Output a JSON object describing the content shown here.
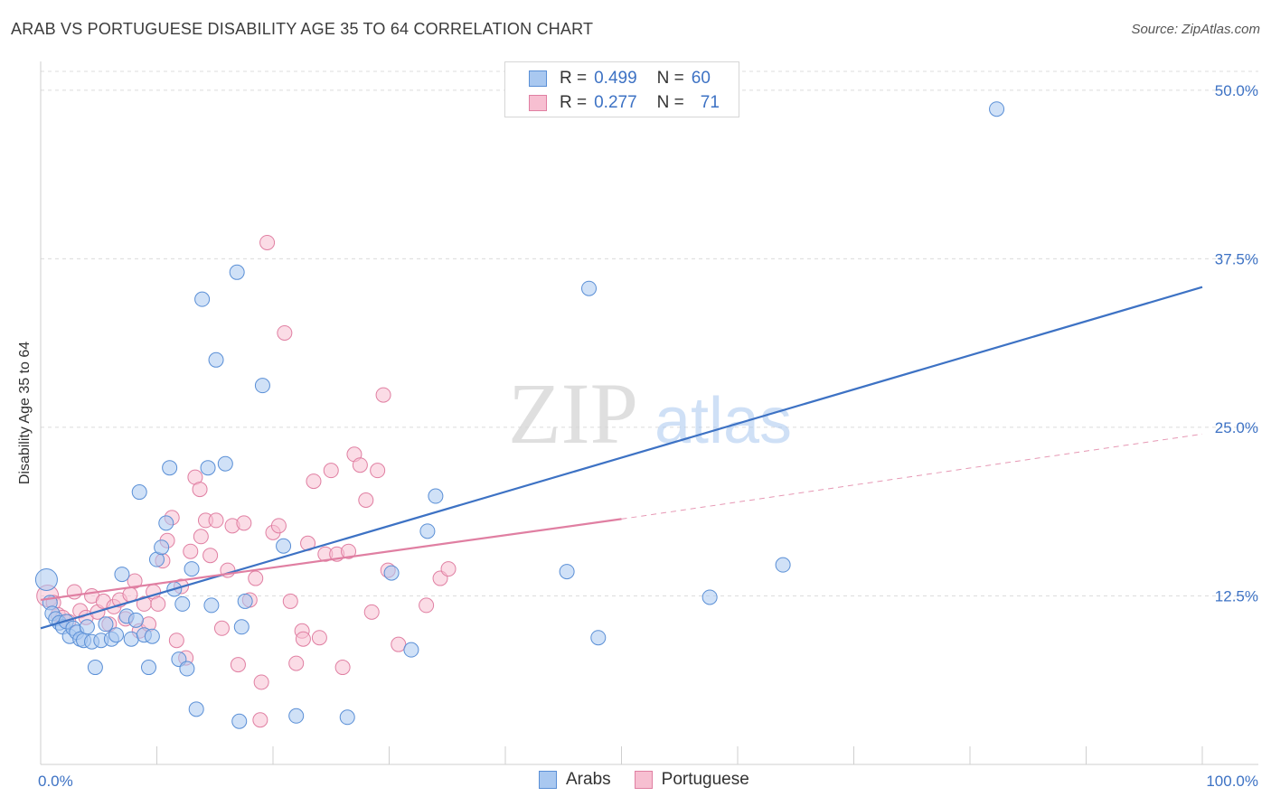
{
  "title": "ARAB VS PORTUGUESE DISABILITY AGE 35 TO 64 CORRELATION CHART",
  "source": "Source: ZipAtlas.com",
  "watermark": {
    "zip": "ZIP",
    "atlas": "atlas"
  },
  "legend": {
    "rows": [
      {
        "r_label": "R =",
        "r_value": "0.499",
        "n_label": "N =",
        "n_value": "60",
        "color": "#a9c8f0",
        "border": "#5a8fd6"
      },
      {
        "r_label": "R =",
        "r_value": "0.277",
        "n_label": "N =",
        "n_value": "71",
        "color": "#f7bfd1",
        "border": "#e07fa2"
      }
    ]
  },
  "bottom_legend": {
    "arabs": "Arabs",
    "portuguese": "Portuguese"
  },
  "chart_data": {
    "type": "scatter",
    "title": "ARAB VS PORTUGUESE DISABILITY AGE 35 TO 64 CORRELATION CHART",
    "xlabel": "",
    "ylabel": "Disability Age 35 to 64",
    "xlim": [
      0,
      100
    ],
    "ylim": [
      0,
      52
    ],
    "x_tick_labels": [
      "0.0%",
      "100.0%"
    ],
    "y_ticks": [
      12.5,
      25.0,
      37.5,
      50.0
    ],
    "y_tick_labels": [
      "12.5%",
      "25.0%",
      "37.5%",
      "50.0%"
    ],
    "grid": "horizontal dashed",
    "colors": {
      "arabs": "#3d72c4",
      "arabs_fill": "#a9c8f0",
      "portuguese": "#e07fa2",
      "portuguese_fill": "#f7bfd1"
    },
    "series": [
      {
        "name": "Arabs",
        "r": 0.499,
        "n": 60,
        "trend": {
          "x": [
            0,
            100
          ],
          "y": [
            10.1,
            35.4
          ],
          "dashed_x": null
        },
        "points": [
          [
            0.5,
            13.7
          ],
          [
            0.8,
            12.0
          ],
          [
            1.0,
            11.2
          ],
          [
            1.3,
            10.8
          ],
          [
            1.6,
            10.5
          ],
          [
            1.9,
            10.2
          ],
          [
            2.2,
            10.6
          ],
          [
            2.5,
            9.5
          ],
          [
            2.8,
            10.1
          ],
          [
            3.1,
            9.8
          ],
          [
            3.4,
            9.3
          ],
          [
            3.7,
            9.2
          ],
          [
            4.0,
            10.2
          ],
          [
            4.4,
            9.1
          ],
          [
            4.7,
            7.2
          ],
          [
            5.2,
            9.2
          ],
          [
            5.6,
            10.4
          ],
          [
            6.1,
            9.3
          ],
          [
            6.5,
            9.6
          ],
          [
            7.0,
            14.1
          ],
          [
            7.4,
            11.0
          ],
          [
            7.8,
            9.3
          ],
          [
            8.2,
            10.7
          ],
          [
            8.5,
            20.2
          ],
          [
            8.9,
            9.6
          ],
          [
            9.3,
            7.2
          ],
          [
            9.6,
            9.5
          ],
          [
            10.0,
            15.2
          ],
          [
            10.4,
            16.1
          ],
          [
            10.8,
            17.9
          ],
          [
            11.1,
            22.0
          ],
          [
            11.5,
            13.0
          ],
          [
            11.9,
            7.8
          ],
          [
            12.2,
            11.9
          ],
          [
            12.6,
            7.1
          ],
          [
            13.0,
            14.5
          ],
          [
            13.4,
            4.1
          ],
          [
            13.9,
            34.5
          ],
          [
            14.4,
            22.0
          ],
          [
            14.7,
            11.8
          ],
          [
            15.1,
            30.0
          ],
          [
            15.9,
            22.3
          ],
          [
            16.9,
            36.5
          ],
          [
            17.3,
            10.2
          ],
          [
            17.6,
            12.1
          ],
          [
            19.1,
            28.1
          ],
          [
            20.9,
            16.2
          ],
          [
            22.0,
            3.6
          ],
          [
            17.1,
            3.2
          ],
          [
            26.4,
            3.5
          ],
          [
            30.2,
            14.2
          ],
          [
            31.9,
            8.5
          ],
          [
            33.3,
            17.3
          ],
          [
            34.0,
            19.9
          ],
          [
            45.3,
            14.3
          ],
          [
            47.2,
            35.3
          ],
          [
            48.0,
            9.4
          ],
          [
            57.6,
            12.4
          ],
          [
            63.9,
            14.8
          ],
          [
            82.3,
            48.6
          ]
        ]
      },
      {
        "name": "Portuguese",
        "r": 0.277,
        "n": 71,
        "trend": {
          "x": [
            0,
            50
          ],
          "y": [
            12.2,
            18.2
          ],
          "dashed_x": [
            50,
            100
          ],
          "dashed_y": [
            18.2,
            24.5
          ]
        },
        "points": [
          [
            0.6,
            12.5
          ],
          [
            1.1,
            12.0
          ],
          [
            1.5,
            11.1
          ],
          [
            1.9,
            10.9
          ],
          [
            2.4,
            10.6
          ],
          [
            2.9,
            12.8
          ],
          [
            3.4,
            11.4
          ],
          [
            3.9,
            10.9
          ],
          [
            4.4,
            12.5
          ],
          [
            4.9,
            11.3
          ],
          [
            5.4,
            12.1
          ],
          [
            5.9,
            10.4
          ],
          [
            6.3,
            11.7
          ],
          [
            6.8,
            12.2
          ],
          [
            7.3,
            10.8
          ],
          [
            7.7,
            12.6
          ],
          [
            8.1,
            13.6
          ],
          [
            8.5,
            9.9
          ],
          [
            8.9,
            11.9
          ],
          [
            9.3,
            10.4
          ],
          [
            9.7,
            12.8
          ],
          [
            10.1,
            11.9
          ],
          [
            10.5,
            15.1
          ],
          [
            10.9,
            16.6
          ],
          [
            11.3,
            18.3
          ],
          [
            11.7,
            9.2
          ],
          [
            12.1,
            13.2
          ],
          [
            12.5,
            7.9
          ],
          [
            12.9,
            15.8
          ],
          [
            13.3,
            21.3
          ],
          [
            13.7,
            20.4
          ],
          [
            14.2,
            18.1
          ],
          [
            14.6,
            15.5
          ],
          [
            15.1,
            18.1
          ],
          [
            15.6,
            10.1
          ],
          [
            16.1,
            14.4
          ],
          [
            16.5,
            17.7
          ],
          [
            17.0,
            7.4
          ],
          [
            17.5,
            17.9
          ],
          [
            18.0,
            12.2
          ],
          [
            18.5,
            13.8
          ],
          [
            19.0,
            6.1
          ],
          [
            19.5,
            38.7
          ],
          [
            20.0,
            17.2
          ],
          [
            20.5,
            17.7
          ],
          [
            21.0,
            32.0
          ],
          [
            21.5,
            12.1
          ],
          [
            22.0,
            7.5
          ],
          [
            22.5,
            9.9
          ],
          [
            23.0,
            16.4
          ],
          [
            23.5,
            21.0
          ],
          [
            24.0,
            9.4
          ],
          [
            24.5,
            15.6
          ],
          [
            25.0,
            21.8
          ],
          [
            25.5,
            15.6
          ],
          [
            26.0,
            7.2
          ],
          [
            26.5,
            15.8
          ],
          [
            27.0,
            23.0
          ],
          [
            27.5,
            22.2
          ],
          [
            28.0,
            19.6
          ],
          [
            28.5,
            11.3
          ],
          [
            29.0,
            21.8
          ],
          [
            29.5,
            27.4
          ],
          [
            29.9,
            14.4
          ],
          [
            30.8,
            8.9
          ],
          [
            33.2,
            11.8
          ],
          [
            34.4,
            13.8
          ],
          [
            35.1,
            14.5
          ],
          [
            13.8,
            16.9
          ],
          [
            18.9,
            3.3
          ],
          [
            22.6,
            9.3
          ]
        ]
      }
    ]
  }
}
